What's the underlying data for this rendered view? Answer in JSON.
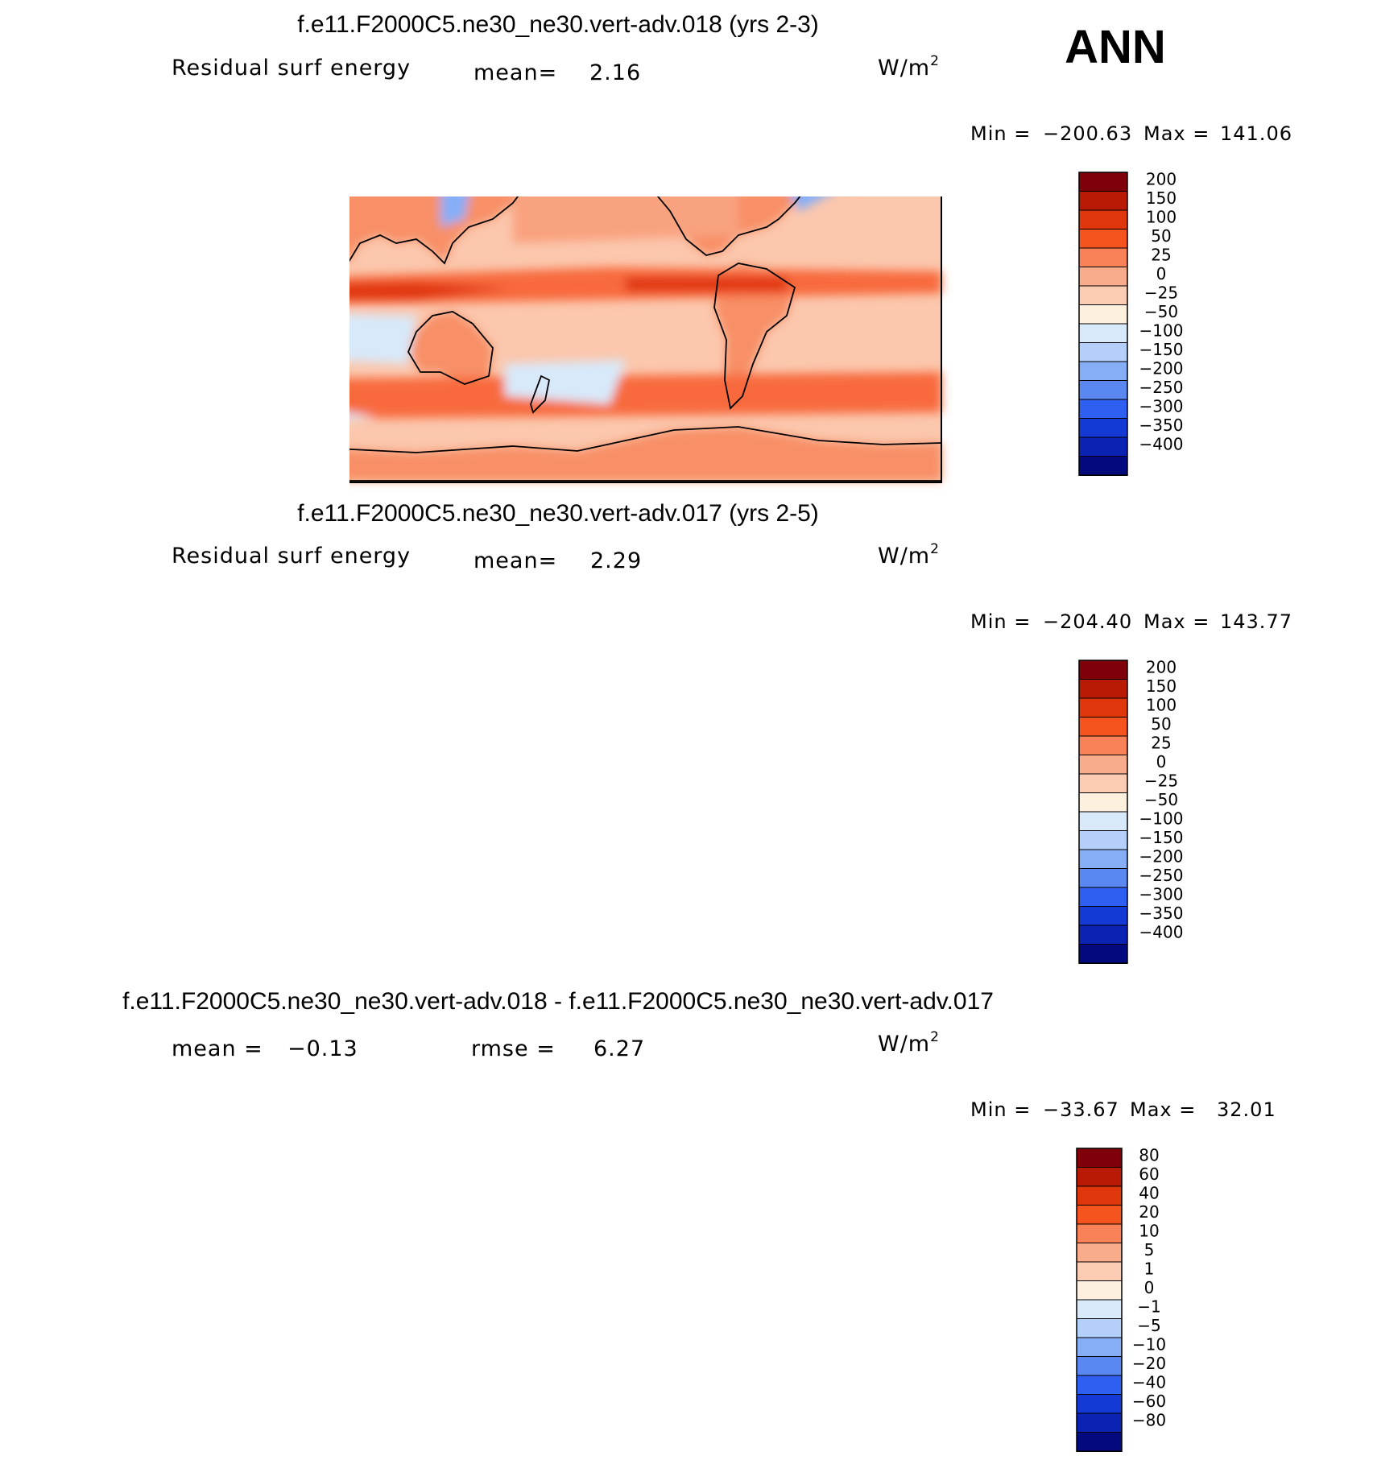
{
  "season": "ANN",
  "chart_data": [
    {
      "type": "heatmap",
      "title": "f.e11.F2000C5.ne30_ne30.vert-adv.018 (yrs 2-3)",
      "variable": "Residual surf energy",
      "units_base": "W/m",
      "units_exp": "2",
      "mean_label": "mean=",
      "mean": "2.16",
      "min_label": "Min =",
      "min": "−200.63",
      "max_label": "Max =",
      "max": "141.06",
      "colorbar_levels": [
        "200",
        "150",
        "100",
        "50",
        "25",
        "0",
        "−25",
        "−50",
        "−100",
        "−150",
        "−200",
        "−250",
        "−300",
        "−350",
        "−400"
      ],
      "colorbar_colors": [
        "#7f0008",
        "#b81a05",
        "#e0360b",
        "#f5541f",
        "#f88158",
        "#f9ac8c",
        "#fccbb3",
        "#fdf0de",
        "#d8e9fa",
        "#b4d0fa",
        "#86aef7",
        "#5b88f0",
        "#2f5ff0",
        "#1539d4",
        "#0a23b2",
        "#030a7e"
      ]
    },
    {
      "type": "heatmap",
      "title": "f.e11.F2000C5.ne30_ne30.vert-adv.017 (yrs 2-5)",
      "variable": "Residual surf energy",
      "units_base": "W/m",
      "units_exp": "2",
      "mean_label": "mean=",
      "mean": "2.29",
      "min_label": "Min =",
      "min": "−204.40",
      "max_label": "Max =",
      "max": "143.77",
      "colorbar_levels": [
        "200",
        "150",
        "100",
        "50",
        "25",
        "0",
        "−25",
        "−50",
        "−100",
        "−150",
        "−200",
        "−250",
        "−300",
        "−350",
        "−400"
      ],
      "colorbar_colors": [
        "#7f0008",
        "#b81a05",
        "#e0360b",
        "#f5541f",
        "#f88158",
        "#f9ac8c",
        "#fccbb3",
        "#fdf0de",
        "#d8e9fa",
        "#b4d0fa",
        "#86aef7",
        "#5b88f0",
        "#2f5ff0",
        "#1539d4",
        "#0a23b2",
        "#030a7e"
      ]
    },
    {
      "type": "heatmap",
      "title": "f.e11.F2000C5.ne30_ne30.vert-adv.018 - f.e11.F2000C5.ne30_ne30.vert-adv.017",
      "units_base": "W/m",
      "units_exp": "2",
      "mean_label": "mean =",
      "mean": "−0.13",
      "rmse_label": "rmse =",
      "rmse": "6.27",
      "min_label": "Min =",
      "min": "−33.67",
      "max_label": "Max =",
      "max": "32.01",
      "colorbar_levels": [
        "80",
        "60",
        "40",
        "20",
        "10",
        "5",
        "1",
        "0",
        "−1",
        "−5",
        "−10",
        "−20",
        "−40",
        "−60",
        "−80"
      ],
      "colorbar_colors": [
        "#7f0008",
        "#b81a05",
        "#e0360b",
        "#f5541f",
        "#f88158",
        "#f9ac8c",
        "#fccbb3",
        "#fdf0de",
        "#d8e9fa",
        "#b4d0fa",
        "#86aef7",
        "#5b88f0",
        "#2f5ff0",
        "#1539d4",
        "#0a23b2",
        "#030a7e"
      ]
    }
  ]
}
